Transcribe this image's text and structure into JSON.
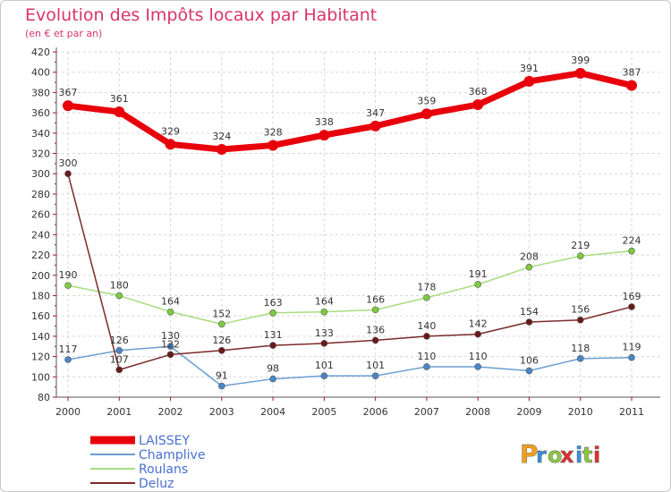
{
  "title": "Evolution des Impôts locaux par Habitant",
  "subtitle": "(en € et par an)",
  "logo": {
    "letters": [
      "P",
      "r",
      "o",
      "x",
      "i",
      "t",
      "i"
    ],
    "colors": [
      "#f0a020",
      "#3a8fd8",
      "#8cc63f",
      "#e03030",
      "#3a8fd8",
      "#8cc63f",
      "#e03030"
    ]
  },
  "chart_data": {
    "type": "line",
    "title": "Evolution des Impôts locaux par Habitant",
    "subtitle": "(en € et par an)",
    "xlabel": "",
    "ylabel": "",
    "x": [
      "2000",
      "2001",
      "2002",
      "2003",
      "2004",
      "2005",
      "2006",
      "2007",
      "2008",
      "2009",
      "2010",
      "2011"
    ],
    "ylim": [
      80,
      420
    ],
    "yticks": [
      80,
      100,
      120,
      140,
      160,
      180,
      200,
      220,
      240,
      260,
      280,
      300,
      320,
      340,
      360,
      380,
      400,
      420
    ],
    "grid": true,
    "legend_position": "bottom-left",
    "series": [
      {
        "name": "LAISSEY",
        "color": "#e8000b",
        "marker_color": "#e8000b",
        "thick": true,
        "values": [
          367,
          361,
          329,
          324,
          328,
          338,
          347,
          359,
          368,
          391,
          399,
          387
        ]
      },
      {
        "name": "Champlive",
        "color": "#6a9fd0",
        "marker_color": "#4a86c6",
        "thick": false,
        "values": [
          117,
          126,
          130,
          91,
          98,
          101,
          101,
          110,
          110,
          106,
          118,
          119
        ]
      },
      {
        "name": "Roulans",
        "color": "#a8dc80",
        "marker_color": "#7ccc40",
        "thick": false,
        "values": [
          190,
          180,
          164,
          152,
          163,
          164,
          166,
          178,
          191,
          208,
          219,
          224
        ]
      },
      {
        "name": "Deluz",
        "color": "#7a2a2a",
        "marker_color": "#6a1a1a",
        "thick": false,
        "values": [
          300,
          107,
          122,
          126,
          131,
          133,
          136,
          140,
          142,
          154,
          156,
          169
        ]
      }
    ]
  }
}
